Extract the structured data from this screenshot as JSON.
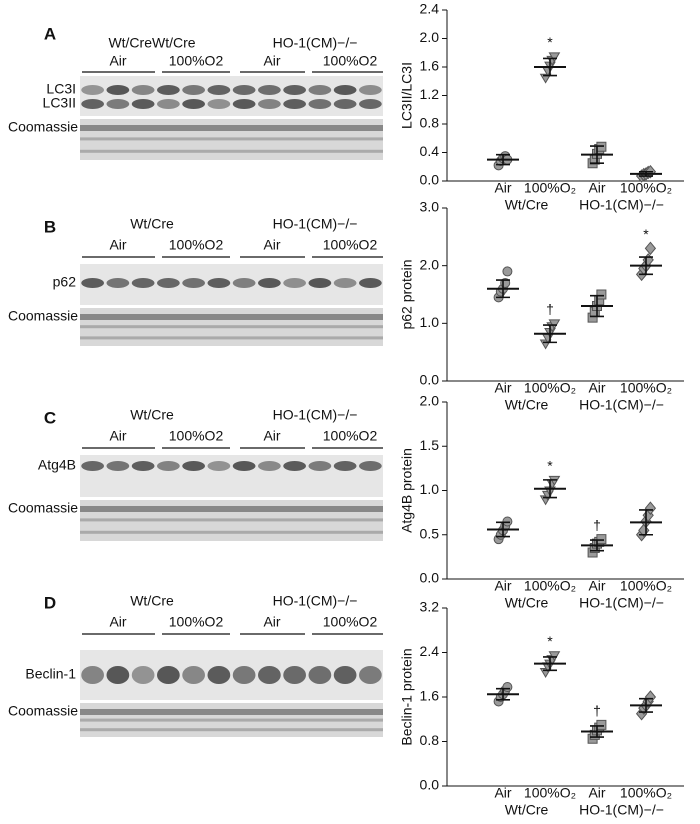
{
  "blots": [
    {
      "letter": "A",
      "groups": [
        "Wt/CreWt/Cre",
        "HO-1(CM)−/−"
      ],
      "conditions": [
        "Air",
        "100%O2",
        "Air",
        "100%O2"
      ],
      "bands": [
        "LC3I",
        "LC3II"
      ],
      "loading": "Coomassie"
    },
    {
      "letter": "B",
      "groups": [
        "Wt/Cre",
        "HO-1(CM)−/−"
      ],
      "conditions": [
        "Air",
        "100%O2",
        "Air",
        "100%O2"
      ],
      "bands": [
        "p62"
      ],
      "loading": "Coomassie"
    },
    {
      "letter": "C",
      "groups": [
        "Wt/Cre",
        "HO-1(CM)−/−"
      ],
      "conditions": [
        "Air",
        "100%O2",
        "Air",
        "100%O2"
      ],
      "bands": [
        "Atg4B"
      ],
      "loading": "Coomassie"
    },
    {
      "letter": "D",
      "groups": [
        "Wt/Cre",
        "HO-1(CM)−/−"
      ],
      "conditions": [
        "Air",
        "100%O2",
        "Air",
        "100%O2"
      ],
      "bands": [
        "Beclin-1"
      ],
      "loading": "Coomassie"
    }
  ],
  "chart_data": [
    {
      "type": "dot",
      "ylabel": "LC3II/LC3I",
      "categories": [
        "Air",
        "100%O₂",
        "Air",
        "100%O₂"
      ],
      "groups": [
        "Wt/Cre",
        "HO-1(CM)−/−"
      ],
      "color": "#9a9a9a",
      "markers": [
        "circle",
        "triangle",
        "square",
        "diamond"
      ],
      "ylim": [
        0,
        2.4
      ],
      "yticks": [
        {
          "value": 0,
          "label": "0.0"
        },
        0.4,
        0.8,
        1.2,
        1.6,
        {
          "value": 2,
          "label": "2.0"
        },
        2.4
      ],
      "means": [
        0.3,
        1.6,
        0.37,
        0.1
      ],
      "sd": [
        0.07,
        0.12,
        0.12,
        0.03
      ],
      "points": [
        [
          0.22,
          0.28,
          0.32,
          0.35,
          0.3
        ],
        [
          1.45,
          1.55,
          1.62,
          1.7,
          1.75
        ],
        [
          0.25,
          0.3,
          0.38,
          0.45,
          0.48
        ],
        [
          0.07,
          0.09,
          0.1,
          0.12,
          0.13
        ]
      ],
      "annotations": [
        {
          "text": "*",
          "category": 1
        }
      ]
    },
    {
      "type": "dot",
      "ylabel": "p62 protein",
      "categories": [
        "Air",
        "100%O₂",
        "Air",
        "100%O₂"
      ],
      "groups": [
        "Wt/Cre",
        "HO-1(CM)−/−"
      ],
      "color": "#9a9a9a",
      "markers": [
        "circle",
        "triangle",
        "square",
        "diamond"
      ],
      "ylim": [
        0,
        3
      ],
      "yticks": [
        {
          "value": 0,
          "label": "0.0"
        },
        {
          "value": 1,
          "label": "1.0"
        },
        {
          "value": 2,
          "label": "2.0"
        },
        {
          "value": 3,
          "label": "3.0"
        }
      ],
      "means": [
        1.6,
        0.82,
        1.3,
        2.0
      ],
      "sd": [
        0.15,
        0.15,
        0.18,
        0.15
      ],
      "points": [
        [
          1.45,
          1.55,
          1.6,
          1.7,
          1.9
        ],
        [
          0.65,
          0.75,
          0.85,
          0.95,
          1.0
        ],
        [
          1.1,
          1.2,
          1.3,
          1.4,
          1.5
        ],
        [
          1.85,
          1.95,
          2.0,
          2.1,
          2.3
        ]
      ],
      "annotations": [
        {
          "text": "†",
          "category": 1
        },
        {
          "text": "*",
          "category": 3
        }
      ]
    },
    {
      "type": "dot",
      "ylabel": "Atg4B protein",
      "categories": [
        "Air",
        "100%O₂",
        "Air",
        "100%O₂"
      ],
      "groups": [
        "Wt/Cre",
        "HO-1(CM)−/−"
      ],
      "color": "#9a9a9a",
      "markers": [
        "circle",
        "triangle",
        "square",
        "diamond"
      ],
      "ylim": [
        0,
        2
      ],
      "yticks": [
        {
          "value": 0,
          "label": "0.0"
        },
        0.5,
        {
          "value": 1,
          "label": "1.0"
        },
        1.5,
        {
          "value": 2,
          "label": "2.0"
        }
      ],
      "means": [
        0.56,
        1.02,
        0.38,
        0.64
      ],
      "sd": [
        0.08,
        0.1,
        0.06,
        0.14
      ],
      "points": [
        [
          0.45,
          0.5,
          0.55,
          0.6,
          0.65
        ],
        [
          0.9,
          0.95,
          1.0,
          1.08,
          1.12
        ],
        [
          0.3,
          0.35,
          0.4,
          0.42,
          0.45
        ],
        [
          0.5,
          0.55,
          0.65,
          0.72,
          0.8
        ]
      ],
      "annotations": [
        {
          "text": "*",
          "category": 1
        },
        {
          "text": "†",
          "category": 2
        }
      ]
    },
    {
      "type": "dot",
      "ylabel": "Beclin-1 protein",
      "categories": [
        "Air",
        "100%O₂",
        "Air",
        "100%O₂"
      ],
      "groups": [
        "Wt/Cre",
        "HO-1(CM)−/−"
      ],
      "color": "#9a9a9a",
      "markers": [
        "circle",
        "triangle",
        "square",
        "diamond"
      ],
      "ylim": [
        0,
        3.2
      ],
      "yticks": [
        {
          "value": 0,
          "label": "0.0"
        },
        0.8,
        1.6,
        2.4,
        3.2
      ],
      "means": [
        1.65,
        2.2,
        0.98,
        1.45
      ],
      "sd": [
        0.1,
        0.12,
        0.1,
        0.12
      ],
      "points": [
        [
          1.52,
          1.6,
          1.65,
          1.72,
          1.78
        ],
        [
          2.05,
          2.15,
          2.2,
          2.28,
          2.35
        ],
        [
          0.85,
          0.92,
          1.0,
          1.05,
          1.1
        ],
        [
          1.3,
          1.4,
          1.45,
          1.52,
          1.6
        ]
      ],
      "annotations": [
        {
          "text": "*",
          "category": 1
        },
        {
          "text": "†",
          "category": 2
        }
      ]
    }
  ]
}
